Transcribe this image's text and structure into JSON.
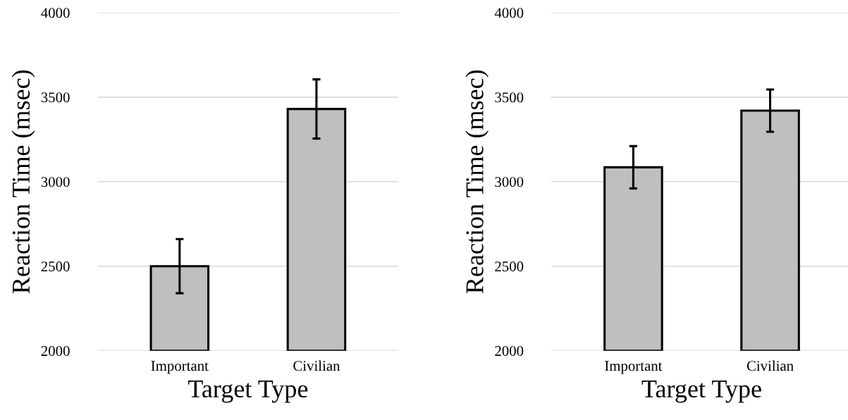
{
  "chart_data": [
    {
      "type": "bar",
      "xlabel": "Target Type",
      "ylabel": "Reaction Time (msec)",
      "categories": [
        "Important",
        "Civilian"
      ],
      "values": [
        2500,
        3430
      ],
      "errors": [
        160,
        175
      ],
      "color": "#bfbfbf",
      "ylim": [
        2000,
        4000
      ],
      "yticks": [
        2000,
        2500,
        3000,
        3500,
        4000
      ],
      "grid": "y"
    },
    {
      "type": "bar",
      "xlabel": "Target Type",
      "ylabel": "Reaction Time (msec)",
      "categories": [
        "Important",
        "Civilian"
      ],
      "values": [
        3085,
        3420
      ],
      "errors": [
        125,
        125
      ],
      "color": "#bfbfbf",
      "ylim": [
        2000,
        4000
      ],
      "yticks": [
        2000,
        2500,
        3000,
        3500,
        4000
      ],
      "grid": "y"
    }
  ]
}
